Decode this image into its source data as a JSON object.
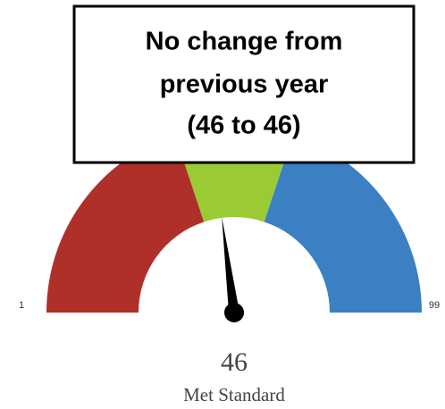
{
  "chart_data": {
    "type": "gauge",
    "min": 1,
    "max": 99,
    "bands": [
      {
        "to": 40,
        "color": "#af3029"
      },
      {
        "to": 60,
        "color": "#9acb34"
      },
      {
        "to": 99,
        "color": "#3a80c3"
      }
    ],
    "value": 46,
    "value_label": "Met Standard",
    "needle_color": "#000000",
    "annotation": [
      "No change from",
      "previous year",
      "(46 to 46)"
    ]
  }
}
